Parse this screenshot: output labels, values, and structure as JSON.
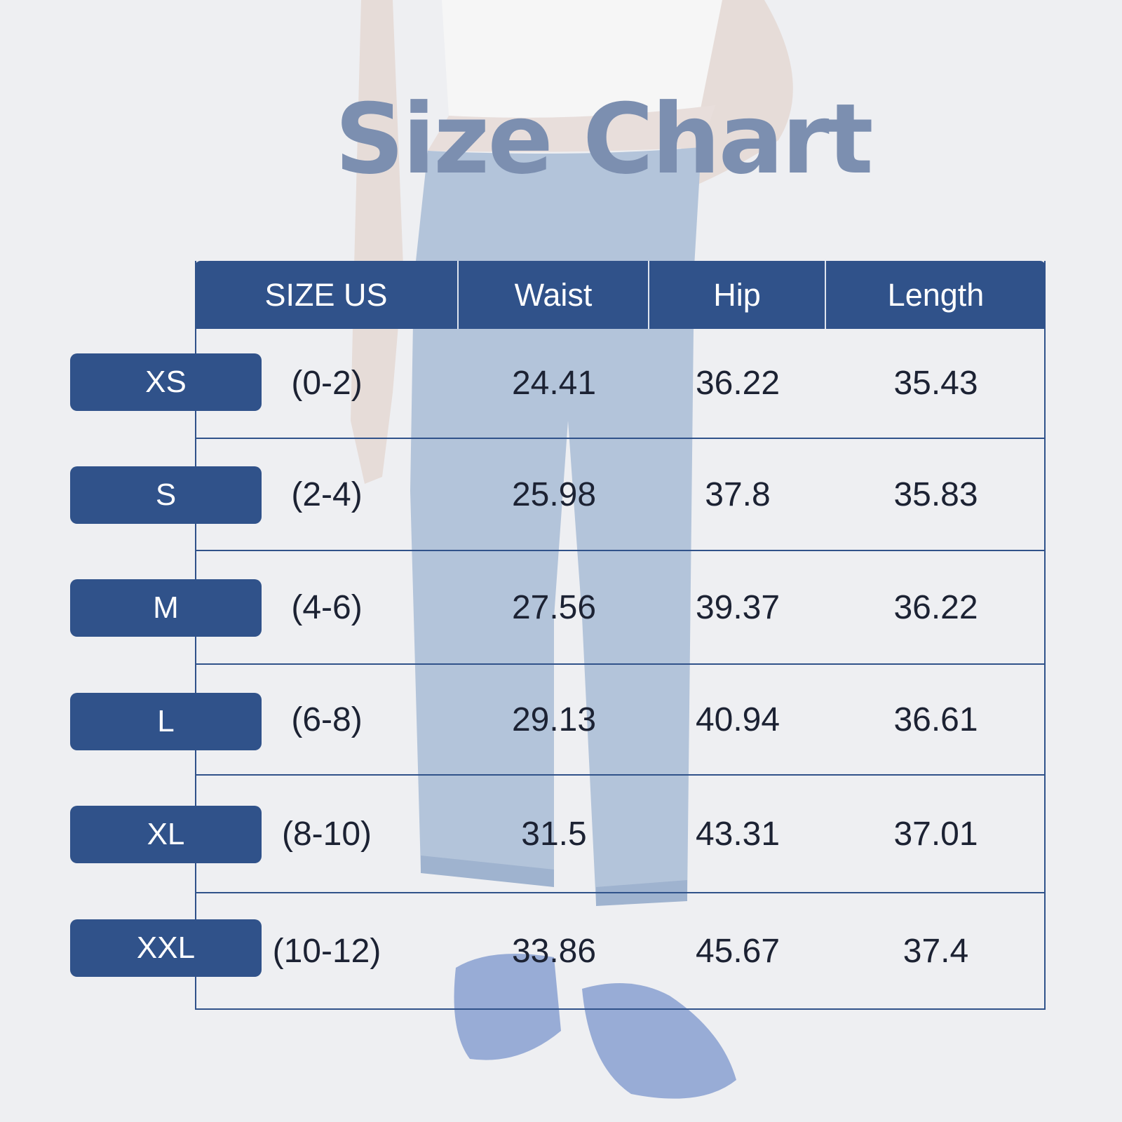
{
  "title": "Size Chart",
  "headers": [
    "SIZE US",
    "Waist",
    "Hip",
    "Length"
  ],
  "rows": [
    {
      "label": "XS",
      "us": "(0-2)",
      "waist": "24.41",
      "hip": "36.22",
      "length": "35.43"
    },
    {
      "label": "S",
      "us": "(2-4)",
      "waist": "25.98",
      "hip": "37.8",
      "length": "35.83"
    },
    {
      "label": "M",
      "us": "(4-6)",
      "waist": "27.56",
      "hip": "39.37",
      "length": "36.22"
    },
    {
      "label": "L",
      "us": "(6-8)",
      "waist": "29.13",
      "hip": "40.94",
      "length": "36.61"
    },
    {
      "label": "XL",
      "us": "(8-10)",
      "waist": "31.5",
      "hip": "43.31",
      "length": "37.01"
    },
    {
      "label": "XXL",
      "us": "(10-12)",
      "waist": "33.86",
      "hip": "45.67",
      "length": "37.4"
    }
  ],
  "colors": {
    "accent": "#30528a",
    "title": "#7c8fb0",
    "background": "#eeeff2"
  }
}
